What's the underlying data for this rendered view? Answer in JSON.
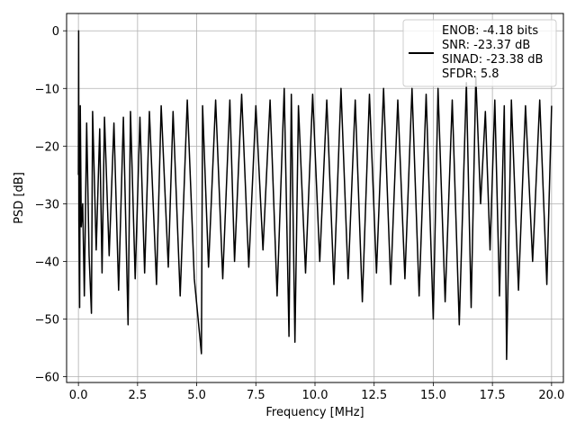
{
  "chart_data": {
    "type": "line",
    "title": "",
    "xlabel": "Frequency [MHz]",
    "ylabel": "PSD [dB]",
    "xlim": [
      -0.5,
      20.5
    ],
    "ylim": [
      -61,
      3
    ],
    "xticks": [
      0.0,
      2.5,
      5.0,
      7.5,
      10.0,
      12.5,
      15.0,
      17.5,
      20.0
    ],
    "xtick_labels": [
      "0.0",
      "2.5",
      "5.0",
      "7.5",
      "10.0",
      "12.5",
      "15.0",
      "17.5",
      "20.0"
    ],
    "yticks": [
      0,
      -10,
      -20,
      -30,
      -40,
      -50,
      -60
    ],
    "ytick_labels": [
      "0",
      "−10",
      "−20",
      "−30",
      "−40",
      "−50",
      "−60"
    ],
    "grid": true,
    "legend_position": "top-right",
    "legend": [
      "ENOB: -4.18 bits",
      "SNR: -23.37 dB",
      "SINAD: -23.38 dB",
      "SFDR: 5.8"
    ],
    "series": [
      {
        "color": "#000000",
        "x": [
          0.0,
          0.01,
          0.02,
          0.05,
          0.08,
          0.12,
          0.18,
          0.25,
          0.35,
          0.45,
          0.55,
          0.6,
          0.75,
          0.9,
          1.0,
          1.1,
          1.3,
          1.5,
          1.7,
          1.9,
          2.1,
          2.2,
          2.4,
          2.6,
          2.8,
          3.0,
          3.3,
          3.5,
          3.8,
          4.0,
          4.3,
          4.6,
          4.9,
          5.2,
          5.25,
          5.5,
          5.8,
          6.1,
          6.4,
          6.6,
          6.9,
          7.2,
          7.5,
          7.8,
          8.1,
          8.4,
          8.7,
          8.9,
          9.0,
          9.15,
          9.3,
          9.6,
          9.9,
          10.2,
          10.5,
          10.8,
          11.1,
          11.4,
          11.7,
          12.0,
          12.3,
          12.6,
          12.9,
          13.2,
          13.5,
          13.8,
          14.1,
          14.4,
          14.7,
          15.0,
          15.2,
          15.5,
          15.8,
          16.1,
          16.4,
          16.6,
          16.8,
          17.0,
          17.2,
          17.4,
          17.6,
          17.8,
          18.0,
          18.1,
          18.3,
          18.6,
          18.9,
          19.2,
          19.5,
          19.8,
          20.0
        ],
        "y": [
          -25,
          0,
          -33,
          -48,
          -13,
          -34,
          -30,
          -46,
          -16,
          -39,
          -49,
          -14,
          -38,
          -17,
          -42,
          -15,
          -39,
          -16,
          -45,
          -15,
          -51,
          -14,
          -43,
          -15,
          -42,
          -14,
          -44,
          -13,
          -41,
          -14,
          -46,
          -12,
          -43,
          -56,
          -13,
          -41,
          -12,
          -43,
          -12,
          -40,
          -11,
          -41,
          -13,
          -38,
          -12,
          -46,
          -10,
          -53,
          -11,
          -54,
          -13,
          -42,
          -11,
          -40,
          -12,
          -44,
          -10,
          -43,
          -12,
          -47,
          -11,
          -42,
          -10,
          -44,
          -12,
          -43,
          -10,
          -46,
          -11,
          -50,
          -10,
          -47,
          -12,
          -51,
          -9,
          -48,
          -8,
          -30,
          -14,
          -38,
          -12,
          -46,
          -13,
          -57,
          -12,
          -45,
          -13,
          -40,
          -12,
          -44,
          -13
        ]
      }
    ]
  }
}
